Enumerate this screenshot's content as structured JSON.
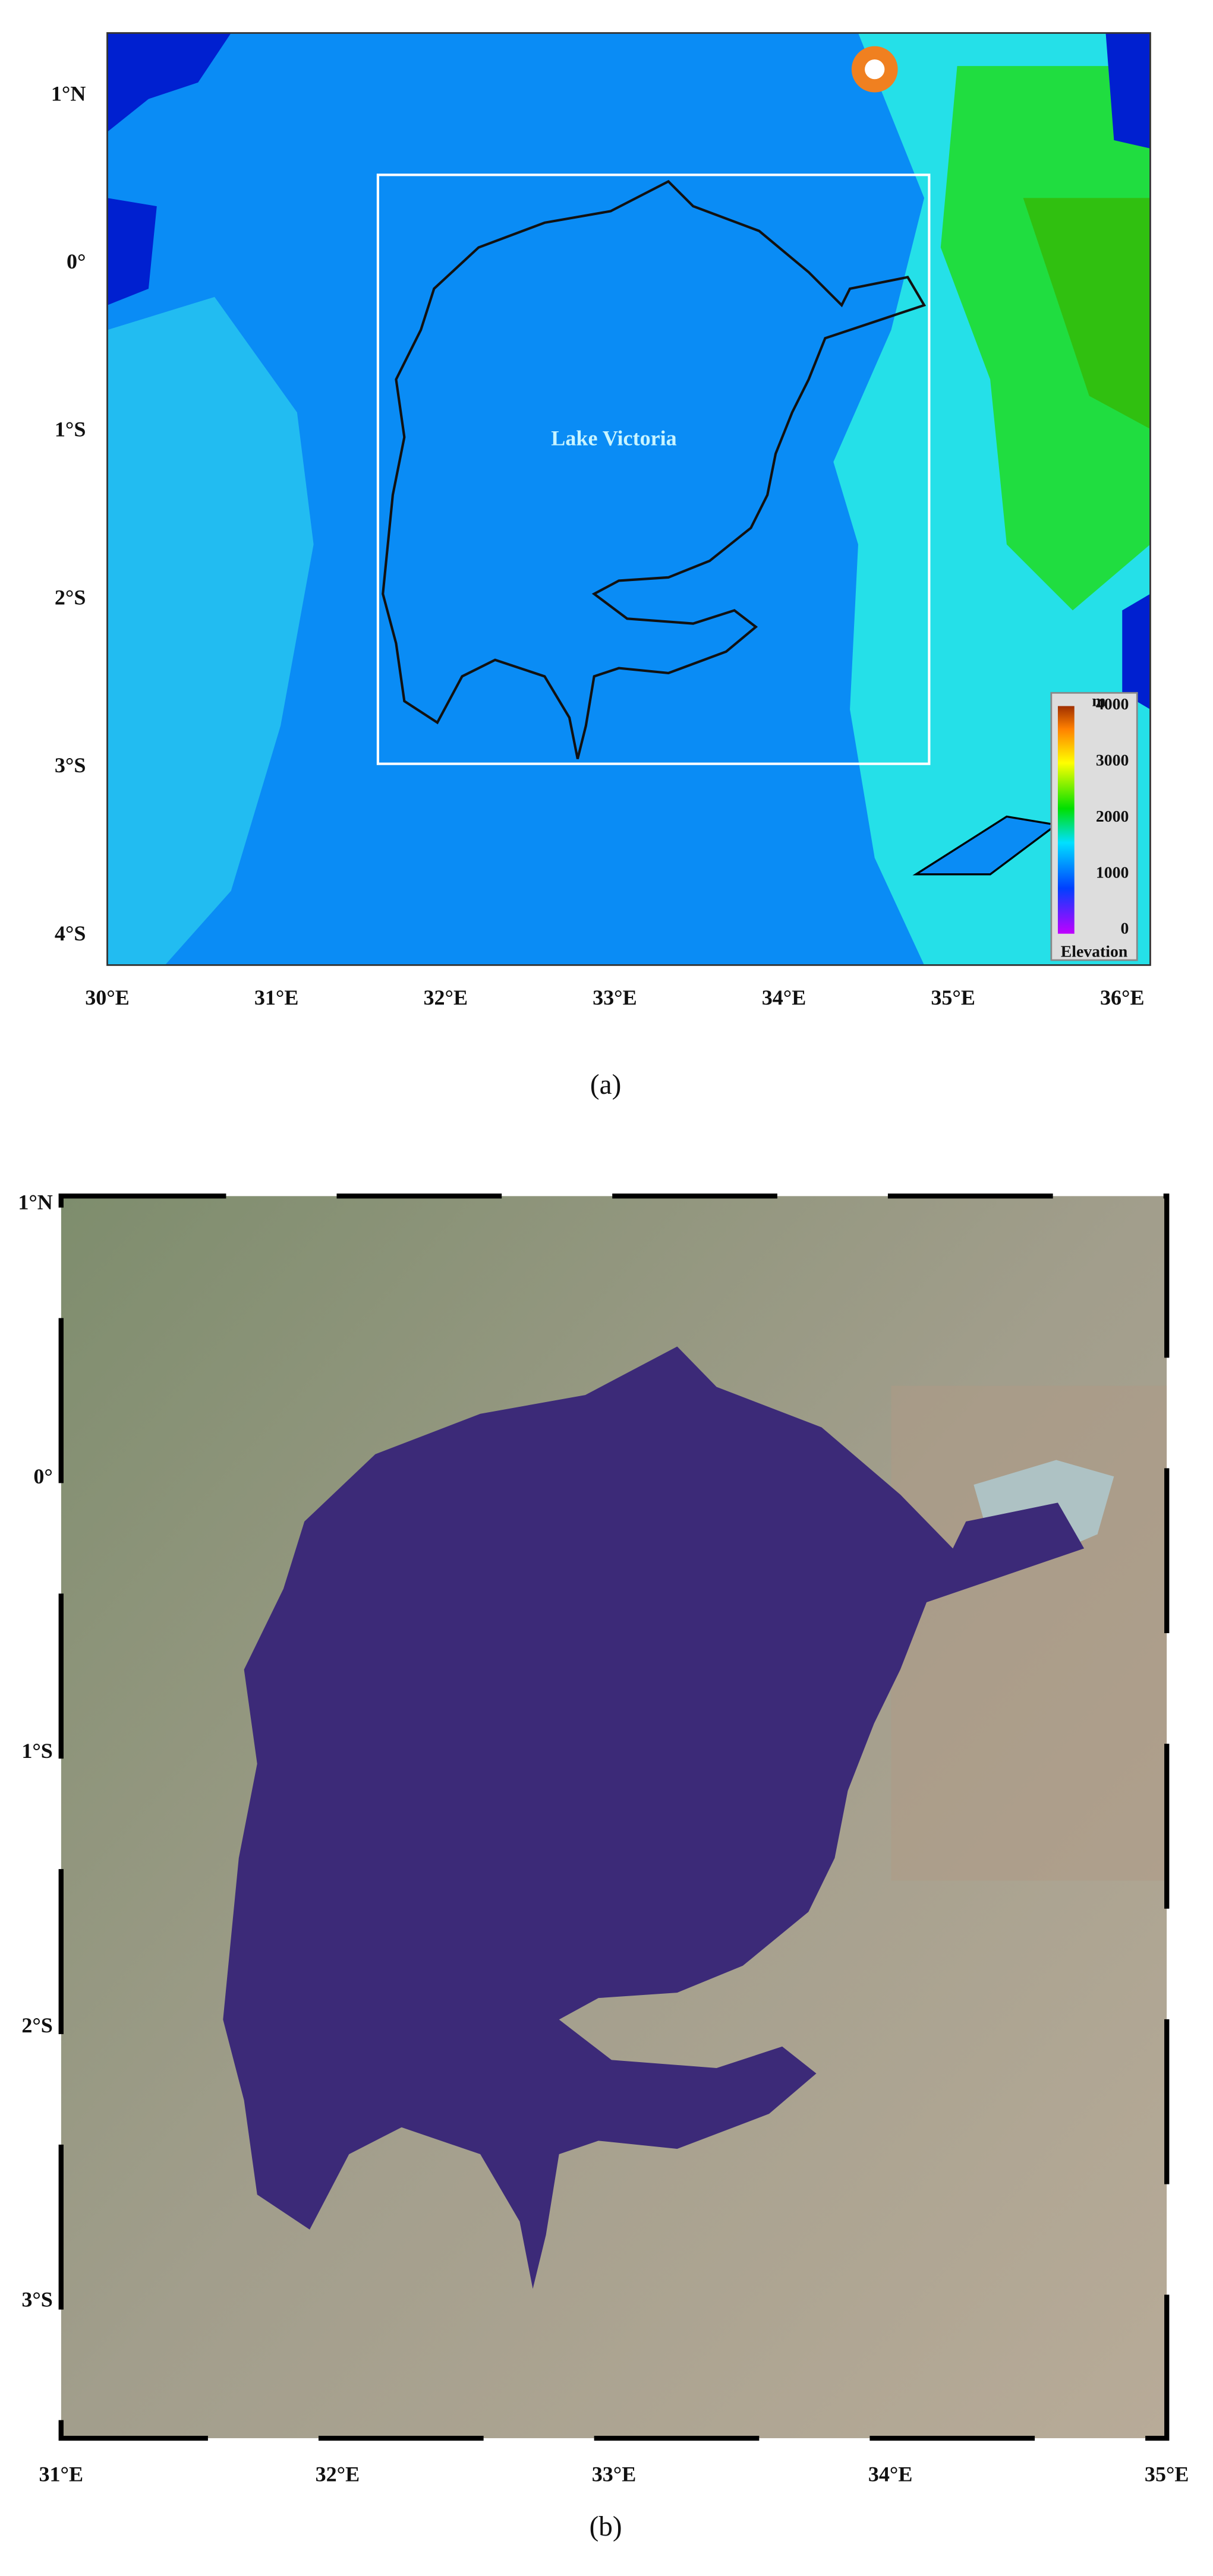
{
  "panel_a": {
    "caption": "(a)",
    "x_labels": [
      "30°E",
      "31°E",
      "32°E",
      "33°E",
      "34°E",
      "35°E",
      "36°E"
    ],
    "y_labels": [
      "1°N",
      "0°",
      "1°S",
      "2°S",
      "3°S",
      "4°S"
    ],
    "lake_label": "Lake Victoria",
    "colorbar": {
      "unit": "m",
      "ticks": [
        4000,
        3000,
        2000,
        1000,
        0
      ],
      "title": "Elevation"
    }
  },
  "panel_b": {
    "caption": "(b)",
    "x_labels": [
      "31°E",
      "32°E",
      "33°E",
      "34°E",
      "35°E"
    ],
    "y_labels": [
      "1°N",
      "0°",
      "1°S",
      "2°S",
      "3°S"
    ]
  }
}
